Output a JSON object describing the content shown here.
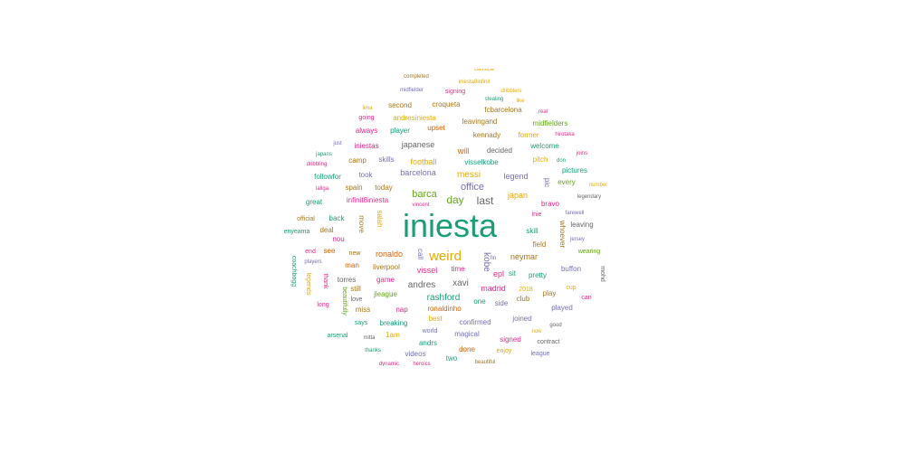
{
  "colors": {
    "teal": "#1b9e77",
    "orange": "#d95f02",
    "purple": "#7570b3",
    "pink": "#e7298a",
    "green": "#66a61e",
    "gold": "#e6ab02",
    "brown": "#a6761d",
    "gray": "#666666"
  },
  "words": [
    {
      "text": "iniesta",
      "color": "teal"
    },
    {
      "text": "weird",
      "color": "gold"
    },
    {
      "text": "barca",
      "color": "green"
    },
    {
      "text": "last",
      "color": "gray"
    },
    {
      "text": "day",
      "color": "green"
    },
    {
      "text": "office",
      "color": "purple"
    },
    {
      "text": "messi",
      "color": "gold"
    },
    {
      "text": "kobe",
      "color": "purple"
    },
    {
      "text": "xavi",
      "color": "gray"
    },
    {
      "text": "andres",
      "color": "gray"
    },
    {
      "text": "rashford",
      "color": "teal"
    },
    {
      "text": "vissel",
      "color": "pink"
    },
    {
      "text": "ronaldo",
      "color": "orange"
    },
    {
      "text": "barcelona",
      "color": "purple"
    },
    {
      "text": "football",
      "color": "gold"
    },
    {
      "text": "japanese",
      "color": "gray"
    },
    {
      "text": "japan",
      "color": "gold"
    },
    {
      "text": "legend",
      "color": "purple"
    },
    {
      "text": "will",
      "color": "orange"
    },
    {
      "text": "epl",
      "color": "pink"
    },
    {
      "text": "madrid",
      "color": "pink"
    },
    {
      "text": "neymar",
      "color": "brown"
    },
    {
      "text": "torres",
      "color": "gray"
    },
    {
      "text": "liverpool",
      "color": "brown"
    },
    {
      "text": "game",
      "color": "pink"
    },
    {
      "text": "time",
      "color": "pink"
    },
    {
      "text": "completed",
      "color": "brown"
    },
    {
      "text": "midfielder",
      "color": "purple"
    },
    {
      "text": "signing",
      "color": "pink"
    },
    {
      "text": "iniesta8infinit",
      "color": "gold"
    },
    {
      "text": "dribblers",
      "color": "gold"
    },
    {
      "text": "lima",
      "color": "gold"
    },
    {
      "text": "second",
      "color": "brown"
    },
    {
      "text": "croqueta",
      "color": "brown"
    },
    {
      "text": "stealing",
      "color": "teal"
    },
    {
      "text": "like",
      "color": "gold"
    },
    {
      "text": "going",
      "color": "pink"
    },
    {
      "text": "andresiniesta",
      "color": "gold"
    },
    {
      "text": "fcbarcelona",
      "color": "brown"
    },
    {
      "text": "real",
      "color": "pink"
    },
    {
      "text": "leavingand",
      "color": "brown"
    },
    {
      "text": "always",
      "color": "pink"
    },
    {
      "text": "player",
      "color": "teal"
    },
    {
      "text": "upset",
      "color": "orange"
    },
    {
      "text": "midfielders",
      "color": "green"
    },
    {
      "text": "kennady",
      "color": "brown"
    },
    {
      "text": "former",
      "color": "gold"
    },
    {
      "text": "hirotaka",
      "color": "pink"
    },
    {
      "text": "just",
      "color": "purple"
    },
    {
      "text": "iniestas",
      "color": "pink"
    },
    {
      "text": "decided",
      "color": "gray"
    },
    {
      "text": "welcome",
      "color": "teal"
    },
    {
      "text": "japans",
      "color": "teal"
    },
    {
      "text": "joins",
      "color": "pink"
    },
    {
      "text": "camp",
      "color": "brown"
    },
    {
      "text": "skills",
      "color": "purple"
    },
    {
      "text": "visselkobe",
      "color": "teal"
    },
    {
      "text": "pitch",
      "color": "gold"
    },
    {
      "text": "don",
      "color": "teal"
    },
    {
      "text": "dribbling",
      "color": "pink"
    },
    {
      "text": "pictures",
      "color": "teal"
    },
    {
      "text": "took",
      "color": "purple"
    },
    {
      "text": "followfor",
      "color": "teal"
    },
    {
      "text": "every",
      "color": "green"
    },
    {
      "text": "number",
      "color": "gold"
    },
    {
      "text": "laliga",
      "color": "pink"
    },
    {
      "text": "spain",
      "color": "brown"
    },
    {
      "text": "today",
      "color": "brown"
    },
    {
      "text": "pic",
      "color": "purple"
    },
    {
      "text": "legendary",
      "color": "gray"
    },
    {
      "text": "great",
      "color": "teal"
    },
    {
      "text": "infinit8iniesta",
      "color": "pink"
    },
    {
      "text": "vincent",
      "color": "pink"
    },
    {
      "text": "bravo",
      "color": "pink"
    },
    {
      "text": "farewell",
      "color": "purple"
    },
    {
      "text": "official",
      "color": "brown"
    },
    {
      "text": "back",
      "color": "teal"
    },
    {
      "text": "salah",
      "color": "gold"
    },
    {
      "text": "inie",
      "color": "pink"
    },
    {
      "text": "leaving",
      "color": "gray"
    },
    {
      "text": "enyeama",
      "color": "teal"
    },
    {
      "text": "deal",
      "color": "brown"
    },
    {
      "text": "move",
      "color": "brown"
    },
    {
      "text": "whoever",
      "color": "brown"
    },
    {
      "text": "jersey",
      "color": "purple"
    },
    {
      "text": "nou",
      "color": "pink"
    },
    {
      "text": "skill",
      "color": "teal"
    },
    {
      "text": "field",
      "color": "brown"
    },
    {
      "text": "wearing",
      "color": "green"
    },
    {
      "text": "end",
      "color": "pink"
    },
    {
      "text": "see",
      "color": "orange"
    },
    {
      "text": "new",
      "color": "brown"
    },
    {
      "text": "call",
      "color": "purple"
    },
    {
      "text": "fin",
      "color": "purple"
    },
    {
      "text": "players",
      "color": "purple"
    },
    {
      "text": "man",
      "color": "orange"
    },
    {
      "text": "sit",
      "color": "teal"
    },
    {
      "text": "buffon",
      "color": "purple"
    },
    {
      "text": "coachbogg",
      "color": "teal"
    },
    {
      "text": "legends",
      "color": "gold"
    },
    {
      "text": "thank",
      "color": "pink"
    },
    {
      "text": "still",
      "color": "brown"
    },
    {
      "text": "pretty",
      "color": "teal"
    },
    {
      "text": "cup",
      "color": "gold"
    },
    {
      "text": "love",
      "color": "gray"
    },
    {
      "text": "jleague",
      "color": "green"
    },
    {
      "text": "one",
      "color": "teal"
    },
    {
      "text": "2018",
      "color": "gold"
    },
    {
      "text": "club",
      "color": "brown"
    },
    {
      "text": "play",
      "color": "brown"
    },
    {
      "text": "can",
      "color": "pink"
    },
    {
      "text": "mohd",
      "color": "gray"
    },
    {
      "text": "long",
      "color": "pink"
    },
    {
      "text": "beautifully",
      "color": "green"
    },
    {
      "text": "miss",
      "color": "brown"
    },
    {
      "text": "nap",
      "color": "pink"
    },
    {
      "text": "ronaldinho",
      "color": "orange"
    },
    {
      "text": "side",
      "color": "purple"
    },
    {
      "text": "played",
      "color": "purple"
    },
    {
      "text": "says",
      "color": "teal"
    },
    {
      "text": "breaking",
      "color": "teal"
    },
    {
      "text": "best",
      "color": "gold"
    },
    {
      "text": "confirmed",
      "color": "purple"
    },
    {
      "text": "joined",
      "color": "purple"
    },
    {
      "text": "good",
      "color": "gray"
    },
    {
      "text": "arsenal",
      "color": "teal"
    },
    {
      "text": "mitta",
      "color": "gray"
    },
    {
      "text": "1am",
      "color": "gold"
    },
    {
      "text": "world",
      "color": "purple"
    },
    {
      "text": "magical",
      "color": "purple"
    },
    {
      "text": "now",
      "color": "gold"
    },
    {
      "text": "signed",
      "color": "pink"
    },
    {
      "text": "contract",
      "color": "gray"
    },
    {
      "text": "thanks",
      "color": "teal"
    },
    {
      "text": "andrs",
      "color": "teal"
    },
    {
      "text": "enjoy",
      "color": "gold"
    },
    {
      "text": "league",
      "color": "purple"
    },
    {
      "text": "videos",
      "color": "purple"
    },
    {
      "text": "done",
      "color": "orange"
    },
    {
      "text": "two",
      "color": "teal"
    },
    {
      "text": "beautiful",
      "color": "brown"
    },
    {
      "text": "dynamic",
      "color": "pink"
    },
    {
      "text": "heroics",
      "color": "pink"
    },
    {
      "text": "classical",
      "color": "gold"
    }
  ]
}
